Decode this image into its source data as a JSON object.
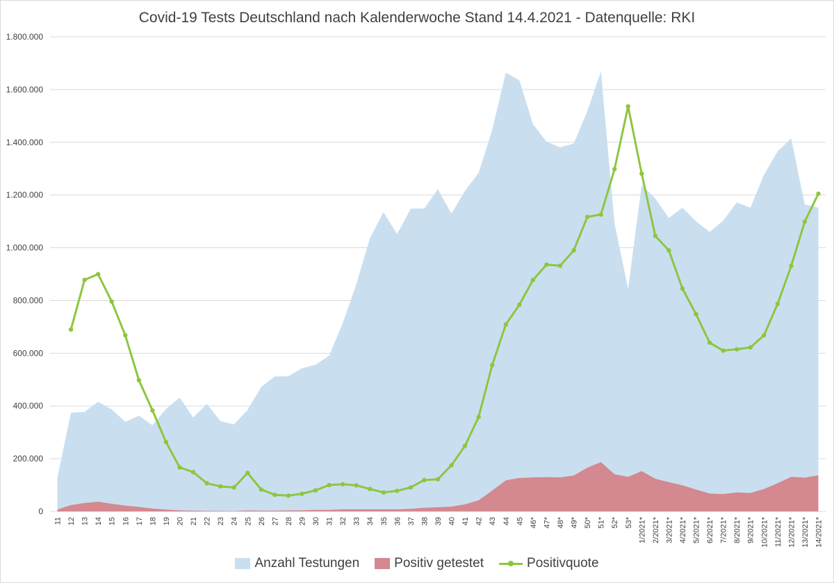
{
  "chart_data": {
    "type": "area",
    "title": "Covid-19 Tests Deutschland nach Kalenderwoche Stand 14.4.2021 - Datenquelle: RKI",
    "ylim": [
      0,
      1800000
    ],
    "y_ticks": [
      "0",
      "200.000",
      "400.000",
      "600.000",
      "800.000",
      "1.000.000",
      "1.200.000",
      "1.400.000",
      "1.600.000",
      "1.800.000"
    ],
    "y_tick_values": [
      0,
      200000,
      400000,
      600000,
      800000,
      1000000,
      1200000,
      1400000,
      1600000,
      1800000
    ],
    "grid": true,
    "legend_position": "bottom",
    "categories": [
      "11",
      "12",
      "13",
      "14",
      "15",
      "16",
      "17",
      "18",
      "19",
      "20",
      "21",
      "22",
      "23",
      "24",
      "25",
      "26",
      "27",
      "28",
      "29",
      "30",
      "31",
      "32",
      "33",
      "34",
      "35",
      "36",
      "37",
      "38",
      "39",
      "40",
      "41",
      "42",
      "43",
      "44",
      "45",
      "46*",
      "47*",
      "48*",
      "49*",
      "50*",
      "51*",
      "52*",
      "53*",
      "1/2021*",
      "2/2021*",
      "3/2021*",
      "4/2021*",
      "5/2021*",
      "6/2021*",
      "7/2021*",
      "8/2021*",
      "9/2021*",
      "10/2021*",
      "11/2021*",
      "12/2021*",
      "13/2021*",
      "14/2021*"
    ],
    "series": [
      {
        "name": "Anzahl Testungen",
        "type": "area",
        "color": "#c9dff0",
        "values": [
          127000,
          374000,
          378000,
          416000,
          387000,
          340000,
          363000,
          327000,
          389000,
          432000,
          356000,
          408000,
          343000,
          330000,
          385000,
          472000,
          512000,
          513000,
          543000,
          556000,
          591000,
          714000,
          862000,
          1036000,
          1135000,
          1052000,
          1148000,
          1149000,
          1222000,
          1130000,
          1216000,
          1284000,
          1447000,
          1664000,
          1635000,
          1469000,
          1402000,
          1381000,
          1395000,
          1518000,
          1669000,
          1093000,
          844000,
          1238000,
          1187000,
          1113000,
          1152000,
          1100000,
          1060000,
          1103000,
          1172000,
          1152000,
          1277000,
          1365000,
          1415000,
          1164000,
          1152000
        ]
      },
      {
        "name": "Positiv getestet",
        "type": "area",
        "color": "#d4888f",
        "values": [
          7000,
          24000,
          32000,
          37000,
          29000,
          22000,
          17000,
          11000,
          7000,
          4000,
          3000,
          2000,
          2000,
          1000,
          4000,
          3000,
          3000,
          4000,
          4000,
          6000,
          6000,
          8000,
          8000,
          8000,
          8000,
          8000,
          10000,
          14000,
          16000,
          18000,
          27000,
          42000,
          79000,
          118000,
          127000,
          129000,
          130000,
          129000,
          136000,
          166000,
          187000,
          141000,
          131000,
          153000,
          124000,
          111000,
          99000,
          83000,
          68000,
          66000,
          72000,
          70000,
          85000,
          107000,
          131000,
          128000,
          137000
        ]
      },
      {
        "name": "Positivquote",
        "type": "line",
        "color": "#8dc63f",
        "values": [
          null,
          690000,
          878000,
          900000,
          796000,
          668000,
          498000,
          383000,
          263000,
          167000,
          149000,
          107000,
          95000,
          91000,
          146000,
          83000,
          63000,
          60000,
          67000,
          80000,
          100000,
          103000,
          99000,
          85000,
          72000,
          78000,
          91000,
          119000,
          122000,
          175000,
          249000,
          358000,
          555000,
          709000,
          784000,
          878000,
          936000,
          932000,
          990000,
          1117000,
          1126000,
          1298000,
          1536000,
          1281000,
          1045000,
          990000,
          845000,
          748000,
          640000,
          610000,
          615000,
          622000,
          668000,
          787000,
          931000,
          1099000,
          1205000
        ]
      }
    ]
  }
}
